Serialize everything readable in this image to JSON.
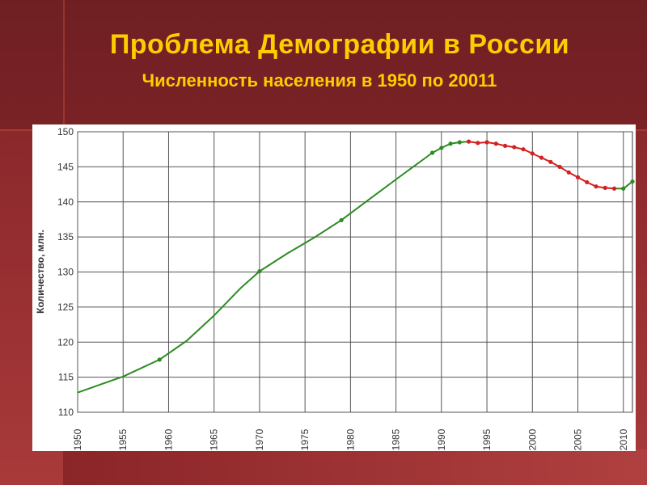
{
  "slide": {
    "title": "Проблема Демографии в России",
    "subtitle": "Численность населения в 1950 по 20011"
  },
  "colors": {
    "title": "#ffcc00",
    "background": "#8e2a2d",
    "line_growth": "#2e8b22",
    "line_decline": "#d42020",
    "grid": "#555555"
  },
  "chart_data": {
    "type": "line",
    "ylabel": "Количество, млн.",
    "xlabel": "",
    "xlim": [
      1950,
      2011
    ],
    "ylim": [
      110,
      150
    ],
    "xticks": [
      1950,
      1955,
      1960,
      1965,
      1970,
      1975,
      1980,
      1985,
      1990,
      1995,
      2000,
      2005,
      2010
    ],
    "yticks": [
      110,
      115,
      120,
      125,
      130,
      135,
      140,
      145,
      150
    ],
    "grid": true,
    "series": [
      {
        "color": "#2e8b22",
        "x": [
          1950,
          1955,
          1959,
          1962,
          1965,
          1968,
          1970,
          1973,
          1976,
          1979,
          1982,
          1985,
          1989,
          1990,
          1991,
          1992,
          1993
        ],
        "y": [
          112.8,
          115.1,
          117.5,
          120.2,
          123.8,
          127.8,
          130.1,
          132.6,
          134.9,
          137.4,
          140.3,
          143.2,
          147.0,
          147.7,
          148.3,
          148.5,
          148.6
        ]
      },
      {
        "color": "#d42020",
        "x": [
          1993,
          1994,
          1995,
          1996,
          1997,
          1998,
          1999,
          2000,
          2001,
          2002,
          2003,
          2004,
          2005,
          2006,
          2007,
          2008,
          2009
        ],
        "y": [
          148.6,
          148.4,
          148.5,
          148.3,
          148.0,
          147.8,
          147.5,
          146.9,
          146.3,
          145.7,
          145.0,
          144.2,
          143.5,
          142.8,
          142.2,
          142.0,
          141.9
        ]
      },
      {
        "color": "#2e8b22",
        "x": [
          2009,
          2010,
          2011
        ],
        "y": [
          141.9,
          141.9,
          142.9
        ]
      }
    ],
    "markers": [
      {
        "x": 1959,
        "y": 117.5,
        "color": "#2e8b22"
      },
      {
        "x": 1970,
        "y": 130.1,
        "color": "#2e8b22"
      },
      {
        "x": 1979,
        "y": 137.4,
        "color": "#2e8b22"
      },
      {
        "x": 1989,
        "y": 147.0,
        "color": "#2e8b22"
      },
      {
        "x": 1990,
        "y": 147.7,
        "color": "#2e8b22"
      },
      {
        "x": 1991,
        "y": 148.3,
        "color": "#2e8b22"
      },
      {
        "x": 1992,
        "y": 148.5,
        "color": "#2e8b22"
      },
      {
        "x": 1993,
        "y": 148.6,
        "color": "#d42020"
      },
      {
        "x": 1994,
        "y": 148.4,
        "color": "#d42020"
      },
      {
        "x": 1995,
        "y": 148.5,
        "color": "#d42020"
      },
      {
        "x": 1996,
        "y": 148.3,
        "color": "#d42020"
      },
      {
        "x": 1997,
        "y": 148.0,
        "color": "#d42020"
      },
      {
        "x": 1998,
        "y": 147.8,
        "color": "#d42020"
      },
      {
        "x": 1999,
        "y": 147.5,
        "color": "#d42020"
      },
      {
        "x": 2000,
        "y": 146.9,
        "color": "#d42020"
      },
      {
        "x": 2001,
        "y": 146.3,
        "color": "#d42020"
      },
      {
        "x": 2002,
        "y": 145.7,
        "color": "#d42020"
      },
      {
        "x": 2003,
        "y": 145.0,
        "color": "#d42020"
      },
      {
        "x": 2004,
        "y": 144.2,
        "color": "#d42020"
      },
      {
        "x": 2005,
        "y": 143.5,
        "color": "#d42020"
      },
      {
        "x": 2006,
        "y": 142.8,
        "color": "#d42020"
      },
      {
        "x": 2007,
        "y": 142.2,
        "color": "#d42020"
      },
      {
        "x": 2008,
        "y": 142.0,
        "color": "#d42020"
      },
      {
        "x": 2009,
        "y": 141.9,
        "color": "#d42020"
      },
      {
        "x": 2010,
        "y": 141.9,
        "color": "#2e8b22"
      },
      {
        "x": 2011,
        "y": 142.9,
        "color": "#2e8b22"
      }
    ]
  }
}
